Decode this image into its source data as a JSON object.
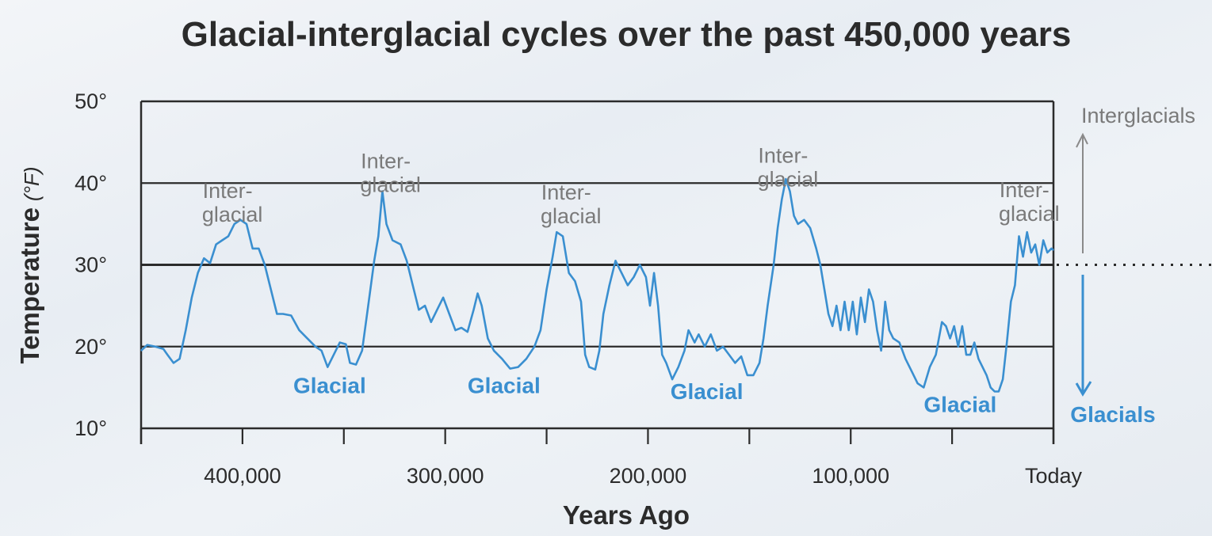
{
  "chart_data": {
    "type": "line",
    "title": "Glacial-interglacial cycles over the past 450,000 years",
    "xlabel": "Years Ago",
    "ylabel": "Temperature",
    "ylabel_unit": "(°F)",
    "xlim": [
      450000,
      0
    ],
    "ylim": [
      10,
      50
    ],
    "x_ticks": [
      450000,
      400000,
      350000,
      300000,
      250000,
      200000,
      150000,
      100000,
      50000,
      0
    ],
    "x_tick_labels": [
      {
        "x": 400000,
        "label": "400,000"
      },
      {
        "x": 300000,
        "label": "300,000"
      },
      {
        "x": 200000,
        "label": "200,000"
      },
      {
        "x": 100000,
        "label": "100,000"
      },
      {
        "x": 0,
        "label": "Today"
      }
    ],
    "y_ticks": [
      {
        "value": 50,
        "label": "50°"
      },
      {
        "value": 40,
        "label": "40°"
      },
      {
        "value": 30,
        "label": "30°"
      },
      {
        "value": 20,
        "label": "20°"
      },
      {
        "value": 10,
        "label": "10°"
      }
    ],
    "grid": "horizontal lines at 20, 30, 40",
    "line_color": "#3a8fd0",
    "series": [
      {
        "points": [
          [
            450000,
            19.5
          ],
          [
            447000,
            20.2
          ],
          [
            443000,
            20.0
          ],
          [
            439000,
            19.7
          ],
          [
            437000,
            19.0
          ],
          [
            434000,
            18.0
          ],
          [
            431000,
            18.5
          ],
          [
            428000,
            22.0
          ],
          [
            425000,
            26.0
          ],
          [
            422000,
            29.0
          ],
          [
            419000,
            30.8
          ],
          [
            416000,
            30.2
          ],
          [
            413000,
            32.5
          ],
          [
            410000,
            33.0
          ],
          [
            407000,
            33.5
          ],
          [
            404000,
            35.0
          ],
          [
            401000,
            35.5
          ],
          [
            398000,
            35.0
          ],
          [
            395000,
            32.0
          ],
          [
            392000,
            32.0
          ],
          [
            389000,
            30.0
          ],
          [
            386000,
            27.0
          ],
          [
            383000,
            24.0
          ],
          [
            380000,
            24.0
          ],
          [
            376000,
            23.8
          ],
          [
            372000,
            22.0
          ],
          [
            368000,
            21.0
          ],
          [
            364000,
            20.0
          ],
          [
            361000,
            19.5
          ],
          [
            358000,
            17.5
          ],
          [
            355000,
            19.0
          ],
          [
            352000,
            20.5
          ],
          [
            349000,
            20.3
          ],
          [
            347000,
            18.0
          ],
          [
            344000,
            17.8
          ],
          [
            341000,
            19.5
          ],
          [
            338000,
            25.0
          ],
          [
            335000,
            30.5
          ],
          [
            333000,
            33.5
          ],
          [
            331000,
            39.0
          ],
          [
            329000,
            35.0
          ],
          [
            326000,
            33.0
          ],
          [
            322000,
            32.5
          ],
          [
            319000,
            30.5
          ],
          [
            316000,
            27.5
          ],
          [
            313000,
            24.5
          ],
          [
            310000,
            25.0
          ],
          [
            307000,
            23.0
          ],
          [
            304000,
            24.5
          ],
          [
            301000,
            26.0
          ],
          [
            298000,
            24.0
          ],
          [
            295000,
            22.0
          ],
          [
            292000,
            22.3
          ],
          [
            289000,
            21.8
          ],
          [
            286000,
            24.5
          ],
          [
            284000,
            26.5
          ],
          [
            282000,
            25.0
          ],
          [
            279000,
            21.0
          ],
          [
            276000,
            19.5
          ],
          [
            272000,
            18.5
          ],
          [
            268000,
            17.3
          ],
          [
            264000,
            17.5
          ],
          [
            260000,
            18.5
          ],
          [
            256000,
            20.0
          ],
          [
            253000,
            22.0
          ],
          [
            250000,
            27.0
          ],
          [
            247000,
            31.0
          ],
          [
            245000,
            34.0
          ],
          [
            242000,
            33.5
          ],
          [
            239000,
            29.0
          ],
          [
            236000,
            28.0
          ],
          [
            233000,
            25.5
          ],
          [
            231000,
            19.0
          ],
          [
            229000,
            17.5
          ],
          [
            226000,
            17.2
          ],
          [
            224000,
            19.5
          ],
          [
            222000,
            24.0
          ],
          [
            219000,
            27.5
          ],
          [
            216000,
            30.5
          ],
          [
            213000,
            29.0
          ],
          [
            210000,
            27.5
          ],
          [
            207000,
            28.5
          ],
          [
            204000,
            30.0
          ],
          [
            201000,
            28.5
          ],
          [
            199000,
            25.0
          ],
          [
            197000,
            29.0
          ],
          [
            195000,
            25.0
          ],
          [
            193000,
            19.0
          ],
          [
            191000,
            18.0
          ],
          [
            188000,
            16.0
          ],
          [
            185000,
            17.5
          ],
          [
            182000,
            19.5
          ],
          [
            180000,
            22.0
          ],
          [
            177000,
            20.5
          ],
          [
            175000,
            21.5
          ],
          [
            172000,
            20.0
          ],
          [
            169000,
            21.5
          ],
          [
            166000,
            19.5
          ],
          [
            163000,
            20.0
          ],
          [
            160000,
            19.0
          ],
          [
            157000,
            18.0
          ],
          [
            154000,
            18.8
          ],
          [
            151000,
            16.5
          ],
          [
            148000,
            16.5
          ],
          [
            145000,
            18.0
          ],
          [
            143000,
            21.0
          ],
          [
            141000,
            25.0
          ],
          [
            138000,
            30.0
          ],
          [
            136000,
            34.5
          ],
          [
            134000,
            38.0
          ],
          [
            132000,
            40.5
          ],
          [
            130000,
            39.0
          ],
          [
            128000,
            36.0
          ],
          [
            126000,
            35.0
          ],
          [
            123000,
            35.5
          ],
          [
            120000,
            34.5
          ],
          [
            117000,
            32.0
          ],
          [
            115000,
            30.0
          ],
          [
            113000,
            27.0
          ],
          [
            111000,
            24.0
          ],
          [
            109000,
            22.5
          ],
          [
            107000,
            25.0
          ],
          [
            105000,
            22.0
          ],
          [
            103000,
            25.5
          ],
          [
            101000,
            22.0
          ],
          [
            99000,
            25.5
          ],
          [
            97000,
            21.5
          ],
          [
            95000,
            26.0
          ],
          [
            93000,
            23.0
          ],
          [
            91000,
            27.0
          ],
          [
            89000,
            25.5
          ],
          [
            87000,
            22.0
          ],
          [
            85000,
            19.5
          ],
          [
            83000,
            25.5
          ],
          [
            81000,
            22.0
          ],
          [
            79000,
            21.0
          ],
          [
            76000,
            20.5
          ],
          [
            73000,
            18.5
          ],
          [
            70000,
            17.0
          ],
          [
            67000,
            15.5
          ],
          [
            64000,
            15.0
          ],
          [
            61000,
            17.5
          ],
          [
            58000,
            19.0
          ],
          [
            55000,
            23.0
          ],
          [
            53000,
            22.5
          ],
          [
            51000,
            21.0
          ],
          [
            49000,
            22.5
          ],
          [
            47000,
            20.0
          ],
          [
            45000,
            22.5
          ],
          [
            43000,
            19.0
          ],
          [
            41000,
            19.0
          ],
          [
            39000,
            20.5
          ],
          [
            37000,
            18.5
          ],
          [
            35000,
            17.5
          ],
          [
            33000,
            16.5
          ],
          [
            31000,
            15.0
          ],
          [
            29000,
            14.5
          ],
          [
            27000,
            14.5
          ],
          [
            25000,
            16.0
          ],
          [
            23000,
            20.5
          ],
          [
            21000,
            25.5
          ],
          [
            19000,
            27.5
          ],
          [
            17000,
            33.5
          ],
          [
            15000,
            31.0
          ],
          [
            13000,
            34.0
          ],
          [
            11000,
            31.5
          ],
          [
            9000,
            32.5
          ],
          [
            7000,
            30.0
          ],
          [
            5000,
            33.0
          ],
          [
            3000,
            31.5
          ],
          [
            1000,
            32.0
          ],
          [
            0,
            31.8
          ]
        ]
      }
    ],
    "annotations": {
      "interglacial": [
        {
          "line1": "Inter-",
          "line2": "glacial",
          "x": 405000,
          "y": 38.2
        },
        {
          "line1": "Inter-",
          "line2": "glacial",
          "x": 327000,
          "y": 41.8
        },
        {
          "line1": "Inter-",
          "line2": "glacial",
          "x": 238000,
          "y": 38.0
        },
        {
          "line1": "Inter-",
          "line2": "glacial",
          "x": 131000,
          "y": 42.5
        },
        {
          "line1": "Inter-",
          "line2": "glacial",
          "x": 12000,
          "y": 38.3
        }
      ],
      "glacial": [
        {
          "label": "Glacial",
          "x": 357000,
          "y": 14.3
        },
        {
          "label": "Glacial",
          "x": 271000,
          "y": 14.3
        },
        {
          "label": "Glacial",
          "x": 171000,
          "y": 13.6
        },
        {
          "label": "Glacial",
          "x": 46000,
          "y": 12.0
        }
      ]
    },
    "legend": {
      "interglacials_label": "Interglacials",
      "glacials_label": "Glacials",
      "placement": "right"
    }
  }
}
